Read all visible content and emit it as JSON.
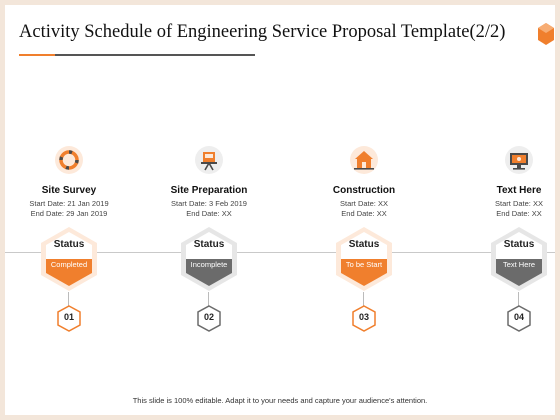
{
  "slide": {
    "title": "Activity Schedule of Engineering Service Proposal Template(2/2)",
    "footer": "This slide is 100% editable. Adapt it to your needs and capture your audience's attention."
  },
  "colors": {
    "accent_orange": "#f07f2d",
    "light_orange": "#fde9da",
    "dark_gray": "#6b6b6b",
    "light_gray": "#eeeeee",
    "page_border": "#f3e6da"
  },
  "stages": [
    {
      "icon": "lifebuoy-icon",
      "name": "Site Survey",
      "start": "Start Date: 21 Jan 2019",
      "end": "End Date: 29 Jan 2019",
      "status_label": "Status",
      "status_value": "Completed",
      "number": "01",
      "theme": "orange"
    },
    {
      "icon": "drafting-board-icon",
      "name": "Site Preparation",
      "start": "Start Date: 3 Feb 2019",
      "end": "End Date: XX",
      "status_label": "Status",
      "status_value": "Incomplete",
      "number": "02",
      "theme": "gray"
    },
    {
      "icon": "house-icon",
      "name": "Construction",
      "start": "Start Date: XX",
      "end": "End Date: XX",
      "status_label": "Status",
      "status_value": "To be Start",
      "number": "03",
      "theme": "orange"
    },
    {
      "icon": "monitor-icon",
      "name": "Text Here",
      "start": "Start Date: XX",
      "end": "End Date: XX",
      "status_label": "Status",
      "status_value": "Text Here",
      "number": "04",
      "theme": "gray"
    }
  ]
}
